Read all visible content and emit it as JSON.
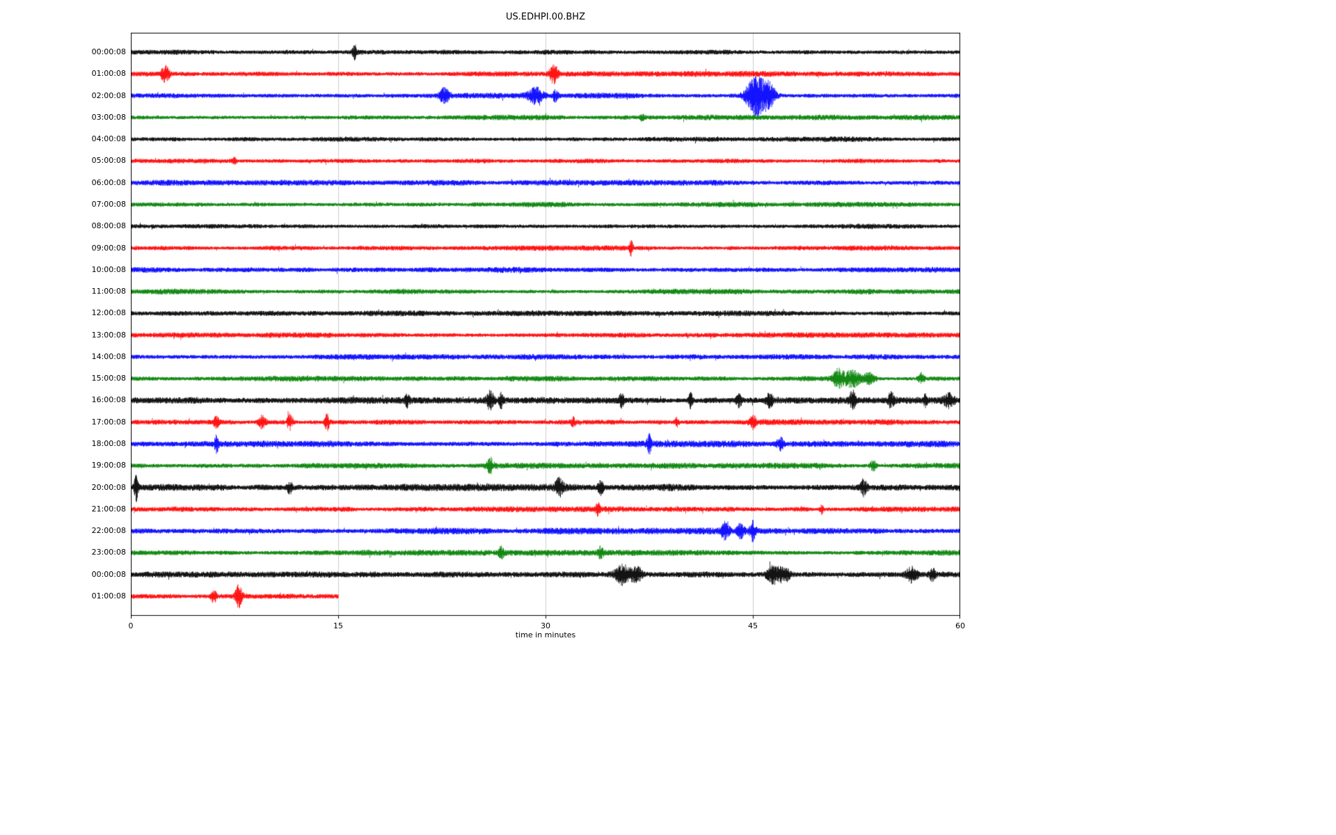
{
  "figure": {
    "title": "US.EDHPI.00.BHZ",
    "xlabel": "time in minutes",
    "background_color": "#ffffff"
  },
  "chart_data": {
    "type": "line",
    "subtype": "helicorder-dayplot",
    "title": "US.EDHPI.00.BHZ",
    "xlabel": "time in minutes",
    "x_range": [
      0,
      60
    ],
    "x_ticks": [
      0,
      15,
      30,
      45,
      60
    ],
    "grid": {
      "vertical_lines_minutes": [
        15,
        30,
        45
      ],
      "color": "#cccccc"
    },
    "interval_minutes": 60,
    "trace_color_cycle": [
      "#000000",
      "#ff0000",
      "#0000ff",
      "#008000"
    ],
    "rows": [
      {
        "label": "00:00:08",
        "color": "#000000",
        "amp": 2.4,
        "extent": 1,
        "events": [
          {
            "t": 16.2,
            "w": 0.35,
            "a": 6
          }
        ]
      },
      {
        "label": "01:00:08",
        "color": "#ff0000",
        "amp": 2.4,
        "extent": 1,
        "events": [
          {
            "t": 2.5,
            "w": 0.6,
            "a": 8
          },
          {
            "t": 30.6,
            "w": 0.6,
            "a": 9
          }
        ]
      },
      {
        "label": "02:00:08",
        "color": "#0000ff",
        "amp": 2.4,
        "extent": 1,
        "events": [
          {
            "t": 22.7,
            "w": 0.7,
            "a": 7
          },
          {
            "t": 29.3,
            "w": 1.1,
            "a": 7
          },
          {
            "t": 30.7,
            "w": 0.4,
            "a": 5
          },
          {
            "t": 45.2,
            "w": 1.4,
            "a": 20
          },
          {
            "t": 46.2,
            "w": 0.9,
            "a": 11
          }
        ]
      },
      {
        "label": "03:00:08",
        "color": "#008000",
        "amp": 2.2,
        "extent": 1,
        "events": [
          {
            "t": 37.0,
            "w": 0.3,
            "a": 3
          }
        ]
      },
      {
        "label": "04:00:08",
        "color": "#000000",
        "amp": 2.2,
        "extent": 1,
        "events": []
      },
      {
        "label": "05:00:08",
        "color": "#ff0000",
        "amp": 2.2,
        "extent": 1,
        "events": [
          {
            "t": 7.5,
            "w": 0.3,
            "a": 3
          }
        ]
      },
      {
        "label": "06:00:08",
        "color": "#0000ff",
        "amp": 2.4,
        "extent": 1,
        "events": []
      },
      {
        "label": "07:00:08",
        "color": "#008000",
        "amp": 2.2,
        "extent": 1,
        "events": []
      },
      {
        "label": "08:00:08",
        "color": "#000000",
        "amp": 2.2,
        "extent": 1,
        "events": []
      },
      {
        "label": "09:00:08",
        "color": "#ff0000",
        "amp": 2.2,
        "extent": 1,
        "events": [
          {
            "t": 36.2,
            "w": 0.25,
            "a": 7
          }
        ]
      },
      {
        "label": "10:00:08",
        "color": "#0000ff",
        "amp": 2.4,
        "extent": 1,
        "events": []
      },
      {
        "label": "11:00:08",
        "color": "#008000",
        "amp": 2.2,
        "extent": 1,
        "events": []
      },
      {
        "label": "12:00:08",
        "color": "#000000",
        "amp": 2.2,
        "extent": 1,
        "events": []
      },
      {
        "label": "13:00:08",
        "color": "#ff0000",
        "amp": 2.2,
        "extent": 1,
        "events": []
      },
      {
        "label": "14:00:08",
        "color": "#0000ff",
        "amp": 2.2,
        "extent": 1,
        "events": []
      },
      {
        "label": "15:00:08",
        "color": "#008000",
        "amp": 2.3,
        "extent": 1,
        "events": [
          {
            "t": 51.2,
            "w": 0.8,
            "a": 9
          },
          {
            "t": 52.2,
            "w": 1.1,
            "a": 8
          },
          {
            "t": 53.4,
            "w": 0.8,
            "a": 5
          },
          {
            "t": 57.2,
            "w": 0.4,
            "a": 5
          }
        ]
      },
      {
        "label": "16:00:08",
        "color": "#000000",
        "amp": 2.7,
        "extent": 1,
        "events": [
          {
            "t": 20.0,
            "w": 0.3,
            "a": 5
          },
          {
            "t": 26.0,
            "w": 0.5,
            "a": 8
          },
          {
            "t": 26.8,
            "w": 0.3,
            "a": 6
          },
          {
            "t": 35.5,
            "w": 0.3,
            "a": 6
          },
          {
            "t": 40.5,
            "w": 0.3,
            "a": 7
          },
          {
            "t": 44.0,
            "w": 0.4,
            "a": 6
          },
          {
            "t": 46.2,
            "w": 0.5,
            "a": 6
          },
          {
            "t": 52.2,
            "w": 0.4,
            "a": 9
          },
          {
            "t": 55.0,
            "w": 0.4,
            "a": 7
          },
          {
            "t": 57.5,
            "w": 0.3,
            "a": 5
          },
          {
            "t": 59.2,
            "w": 0.8,
            "a": 6
          }
        ]
      },
      {
        "label": "17:00:08",
        "color": "#ff0000",
        "amp": 2.4,
        "extent": 1,
        "events": [
          {
            "t": 6.2,
            "w": 0.4,
            "a": 5
          },
          {
            "t": 9.5,
            "w": 0.5,
            "a": 6
          },
          {
            "t": 11.5,
            "w": 0.4,
            "a": 7
          },
          {
            "t": 14.2,
            "w": 0.3,
            "a": 8
          },
          {
            "t": 32.0,
            "w": 0.3,
            "a": 4
          },
          {
            "t": 39.5,
            "w": 0.3,
            "a": 4
          },
          {
            "t": 45.0,
            "w": 0.4,
            "a": 6
          }
        ]
      },
      {
        "label": "18:00:08",
        "color": "#0000ff",
        "amp": 2.7,
        "extent": 1,
        "events": [
          {
            "t": 6.2,
            "w": 0.3,
            "a": 7
          },
          {
            "t": 37.5,
            "w": 0.3,
            "a": 8
          },
          {
            "t": 47.0,
            "w": 0.5,
            "a": 5
          }
        ]
      },
      {
        "label": "19:00:08",
        "color": "#008000",
        "amp": 2.4,
        "extent": 1,
        "events": [
          {
            "t": 26.0,
            "w": 0.5,
            "a": 7
          },
          {
            "t": 53.7,
            "w": 0.4,
            "a": 5
          }
        ]
      },
      {
        "label": "20:00:08",
        "color": "#000000",
        "amp": 2.9,
        "extent": 1,
        "events": [
          {
            "t": 0.4,
            "w": 0.3,
            "a": 13
          },
          {
            "t": 11.5,
            "w": 0.4,
            "a": 5
          },
          {
            "t": 31.0,
            "w": 0.6,
            "a": 7
          },
          {
            "t": 34.0,
            "w": 0.4,
            "a": 6
          },
          {
            "t": 53.0,
            "w": 0.5,
            "a": 7
          }
        ]
      },
      {
        "label": "21:00:08",
        "color": "#ff0000",
        "amp": 2.4,
        "extent": 1,
        "events": [
          {
            "t": 33.8,
            "w": 0.3,
            "a": 5
          },
          {
            "t": 50.0,
            "w": 0.3,
            "a": 4
          }
        ]
      },
      {
        "label": "22:00:08",
        "color": "#0000ff",
        "amp": 2.7,
        "extent": 1,
        "events": [
          {
            "t": 43.0,
            "w": 0.6,
            "a": 7
          },
          {
            "t": 44.1,
            "w": 0.5,
            "a": 6
          },
          {
            "t": 45.0,
            "w": 0.4,
            "a": 9
          }
        ]
      },
      {
        "label": "23:00:08",
        "color": "#008000",
        "amp": 2.4,
        "extent": 1,
        "events": [
          {
            "t": 26.8,
            "w": 0.4,
            "a": 5
          },
          {
            "t": 34.0,
            "w": 0.4,
            "a": 5
          }
        ]
      },
      {
        "label": "00:00:08",
        "color": "#000000",
        "amp": 2.4,
        "extent": 1,
        "events": [
          {
            "t": 35.6,
            "w": 1.1,
            "a": 9
          },
          {
            "t": 36.6,
            "w": 0.8,
            "a": 7
          },
          {
            "t": 46.5,
            "w": 1.0,
            "a": 8
          },
          {
            "t": 47.3,
            "w": 0.8,
            "a": 6
          },
          {
            "t": 56.5,
            "w": 0.8,
            "a": 7
          },
          {
            "t": 58.0,
            "w": 0.5,
            "a": 5
          }
        ]
      },
      {
        "label": "01:00:08",
        "color": "#ff0000",
        "amp": 2.4,
        "extent": 0.25,
        "events": [
          {
            "t": 6.0,
            "w": 0.4,
            "a": 6
          },
          {
            "t": 7.8,
            "w": 0.5,
            "a": 11
          }
        ]
      }
    ]
  }
}
